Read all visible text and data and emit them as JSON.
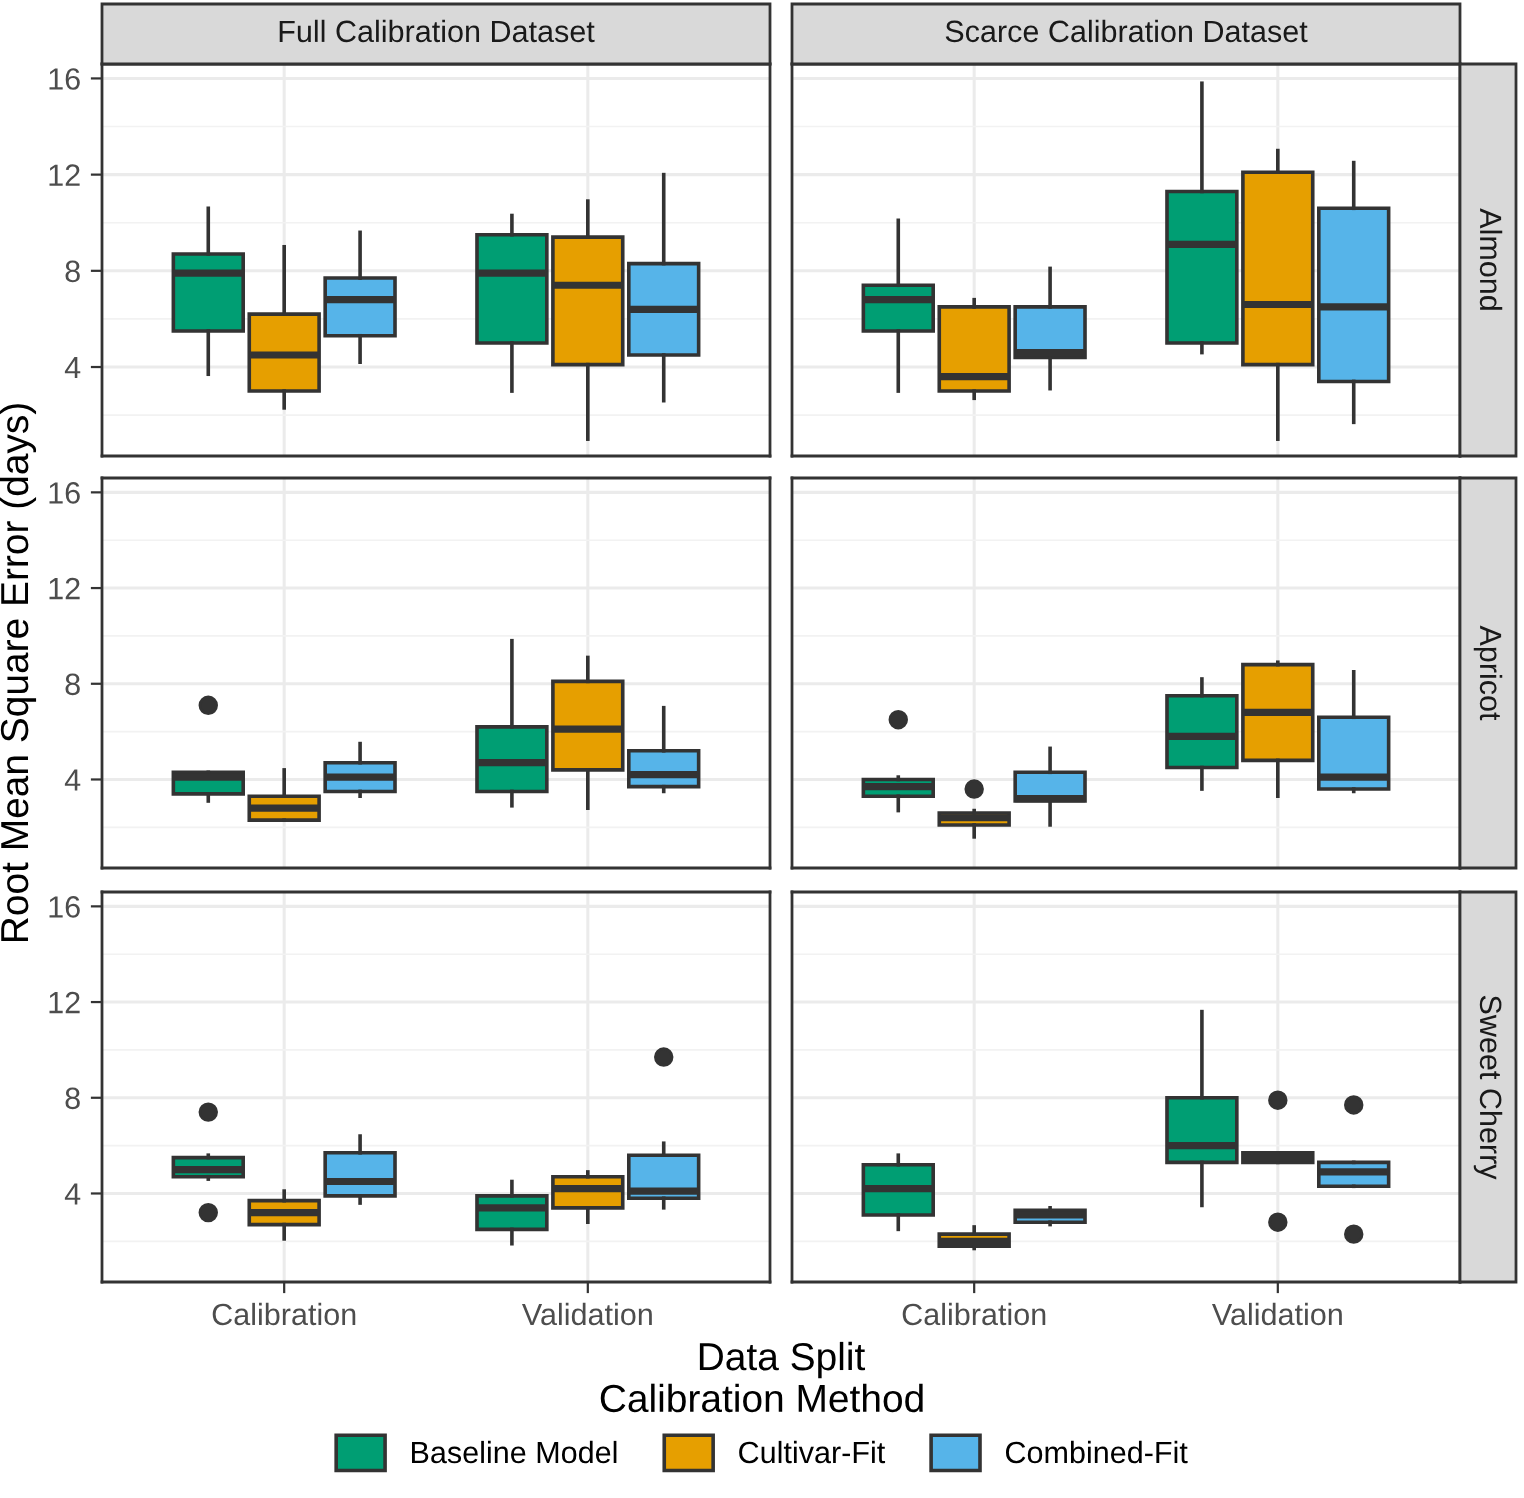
{
  "chart_data": [
    {
      "type": "box",
      "title": "Full Calibration Dataset",
      "legend_title": "Calibration Method",
      "legend": "bottom",
      "categories": [
        "Calibration",
        "Validation"
      ],
      "ylim": [
        0.3,
        16.6
      ],
      "yticks": [
        4,
        8,
        12,
        16
      ],
      "grid": true,
      "tick_labels": "y",
      "series": [
        {
          "name": "Baseline Model",
          "color": "#009e73",
          "boxes": [
            {
              "low": 3.7,
              "q1": 5.5,
              "median": 7.9,
              "q3": 8.7,
              "high": 10.6
            },
            {
              "low": 3.0,
              "q1": 5.0,
              "median": 7.9,
              "q3": 9.5,
              "high": 10.3
            }
          ]
        },
        {
          "name": "Cultivar-Fit",
          "color": "#e69f00",
          "boxes": [
            {
              "low": 2.3,
              "q1": 3.0,
              "median": 4.5,
              "q3": 6.2,
              "high": 9.0
            },
            {
              "low": 1.0,
              "q1": 4.1,
              "median": 7.4,
              "q3": 9.4,
              "high": 10.9
            }
          ]
        },
        {
          "name": "Combined-Fit",
          "color": "#56b4e9",
          "boxes": [
            {
              "low": 4.2,
              "q1": 5.3,
              "median": 6.8,
              "q3": 7.7,
              "high": 9.6
            },
            {
              "low": 2.6,
              "q1": 4.5,
              "median": 6.4,
              "q3": 8.3,
              "high": 12.0
            }
          ]
        }
      ]
    },
    {
      "type": "box",
      "title": "Scarce Calibration Dataset",
      "y2label": "Almond",
      "categories": [
        "Calibration",
        "Validation"
      ],
      "ylim": [
        0.3,
        16.6
      ],
      "yticks": [
        4,
        8,
        12,
        16
      ],
      "grid": true,
      "tick_labels": false,
      "series": [
        {
          "name": "Baseline Model",
          "color": "#009e73",
          "boxes": [
            {
              "low": 3.0,
              "q1": 5.5,
              "median": 6.8,
              "q3": 7.4,
              "high": 10.1
            },
            {
              "low": 4.6,
              "q1": 5.0,
              "median": 9.1,
              "q3": 11.3,
              "high": 15.8
            }
          ]
        },
        {
          "name": "Cultivar-Fit",
          "color": "#e69f00",
          "boxes": [
            {
              "low": 2.7,
              "q1": 3.0,
              "median": 3.6,
              "q3": 6.5,
              "high": 6.8
            },
            {
              "low": 1.0,
              "q1": 4.1,
              "median": 6.6,
              "q3": 12.1,
              "high": 13.0
            }
          ]
        },
        {
          "name": "Combined-Fit",
          "color": "#56b4e9",
          "boxes": [
            {
              "low": 3.1,
              "q1": 4.4,
              "median": 4.6,
              "q3": 6.5,
              "high": 8.1
            },
            {
              "low": 1.7,
              "q1": 3.4,
              "median": 6.5,
              "q3": 10.6,
              "high": 12.5
            }
          ]
        }
      ]
    },
    {
      "type": "box",
      "ylabel": "Root Mean Square Error (days)",
      "categories": [
        "Calibration",
        "Validation"
      ],
      "ylim": [
        0.3,
        16.6
      ],
      "yticks": [
        4,
        8,
        12,
        16
      ],
      "grid": true,
      "tick_labels": "y",
      "series": [
        {
          "name": "Baseline Model",
          "color": "#009e73",
          "boxes": [
            {
              "low": 3.1,
              "q1": 3.4,
              "median": 4.1,
              "q3": 4.3,
              "high": 4.3,
              "outliers": [
                7.1
              ]
            },
            {
              "low": 2.9,
              "q1": 3.5,
              "median": 4.7,
              "q3": 6.2,
              "high": 9.8
            }
          ]
        },
        {
          "name": "Cultivar-Fit",
          "color": "#e69f00",
          "boxes": [
            {
              "low": 2.3,
              "q1": 2.3,
              "median": 2.8,
              "q3": 3.3,
              "high": 4.4
            },
            {
              "low": 2.8,
              "q1": 4.4,
              "median": 6.1,
              "q3": 8.1,
              "high": 9.1
            }
          ]
        },
        {
          "name": "Combined-Fit",
          "color": "#56b4e9",
          "boxes": [
            {
              "low": 3.3,
              "q1": 3.5,
              "median": 4.1,
              "q3": 4.7,
              "high": 5.5
            },
            {
              "low": 3.5,
              "q1": 3.7,
              "median": 4.2,
              "q3": 5.2,
              "high": 7.0
            }
          ]
        }
      ]
    },
    {
      "type": "box",
      "y2label": "Apricot",
      "categories": [
        "Calibration",
        "Validation"
      ],
      "ylim": [
        0.3,
        16.6
      ],
      "yticks": [
        4,
        8,
        12,
        16
      ],
      "grid": true,
      "tick_labels": false,
      "series": [
        {
          "name": "Baseline Model",
          "color": "#009e73",
          "boxes": [
            {
              "low": 2.7,
              "q1": 3.3,
              "median": 3.7,
              "q3": 4.0,
              "high": 4.1,
              "outliers": [
                6.5
              ]
            },
            {
              "low": 3.6,
              "q1": 4.5,
              "median": 5.8,
              "q3": 7.5,
              "high": 8.2
            }
          ]
        },
        {
          "name": "Cultivar-Fit",
          "color": "#e69f00",
          "boxes": [
            {
              "low": 1.6,
              "q1": 2.1,
              "median": 2.4,
              "q3": 2.6,
              "high": 2.7,
              "outliers": [
                3.6
              ]
            },
            {
              "low": 3.3,
              "q1": 4.8,
              "median": 6.8,
              "q3": 8.8,
              "high": 8.9
            }
          ]
        },
        {
          "name": "Combined-Fit",
          "color": "#56b4e9",
          "boxes": [
            {
              "low": 2.1,
              "q1": 3.1,
              "median": 3.2,
              "q3": 4.3,
              "high": 5.3
            },
            {
              "low": 3.5,
              "q1": 3.6,
              "median": 4.1,
              "q3": 6.6,
              "high": 8.5
            }
          ]
        }
      ]
    },
    {
      "type": "box",
      "xlabel": "Data Split",
      "categories": [
        "Calibration",
        "Validation"
      ],
      "ylim": [
        0.3,
        16.6
      ],
      "yticks": [
        4,
        8,
        12,
        16
      ],
      "grid": true,
      "series": [
        {
          "name": "Baseline Model",
          "color": "#009e73",
          "boxes": [
            {
              "low": 4.6,
              "q1": 4.7,
              "median": 5.0,
              "q3": 5.5,
              "high": 5.6,
              "outliers": [
                7.4,
                3.2
              ]
            },
            {
              "low": 1.9,
              "q1": 2.5,
              "median": 3.4,
              "q3": 3.9,
              "high": 4.5
            }
          ]
        },
        {
          "name": "Cultivar-Fit",
          "color": "#e69f00",
          "boxes": [
            {
              "low": 2.1,
              "q1": 2.7,
              "median": 3.2,
              "q3": 3.7,
              "high": 4.1
            },
            {
              "low": 2.8,
              "q1": 3.4,
              "median": 4.2,
              "q3": 4.7,
              "high": 4.9
            }
          ]
        },
        {
          "name": "Combined-Fit",
          "color": "#56b4e9",
          "boxes": [
            {
              "low": 3.6,
              "q1": 3.9,
              "median": 4.5,
              "q3": 5.7,
              "high": 6.4
            },
            {
              "low": 3.4,
              "q1": 3.8,
              "median": 4.1,
              "q3": 5.6,
              "high": 6.1,
              "outliers": [
                9.7
              ]
            }
          ]
        }
      ]
    },
    {
      "type": "box",
      "y2label": "Sweet Cherry",
      "categories": [
        "Calibration",
        "Validation"
      ],
      "ylim": [
        0.3,
        16.6
      ],
      "yticks": [
        4,
        8,
        12,
        16
      ],
      "grid": true,
      "tick_labels": "x",
      "series": [
        {
          "name": "Baseline Model",
          "color": "#009e73",
          "boxes": [
            {
              "low": 2.5,
              "q1": 3.1,
              "median": 4.2,
              "q3": 5.2,
              "high": 5.6
            },
            {
              "low": 3.5,
              "q1": 5.3,
              "median": 6.0,
              "q3": 8.0,
              "high": 11.6
            }
          ]
        },
        {
          "name": "Cultivar-Fit",
          "color": "#e69f00",
          "boxes": [
            {
              "low": 1.7,
              "q1": 1.8,
              "median": 2.0,
              "q3": 2.3,
              "high": 2.6
            },
            {
              "low": 5.3,
              "q1": 5.3,
              "median": 5.5,
              "q3": 5.7,
              "high": 5.7,
              "outliers": [
                7.9,
                2.8
              ]
            }
          ]
        },
        {
          "name": "Combined-Fit",
          "color": "#56b4e9",
          "boxes": [
            {
              "low": 2.7,
              "q1": 2.8,
              "median": 3.1,
              "q3": 3.3,
              "high": 3.4
            },
            {
              "low": 4.3,
              "q1": 4.3,
              "median": 4.9,
              "q3": 5.3,
              "high": 5.3,
              "outliers": [
                7.7,
                2.3
              ]
            }
          ]
        }
      ]
    }
  ]
}
